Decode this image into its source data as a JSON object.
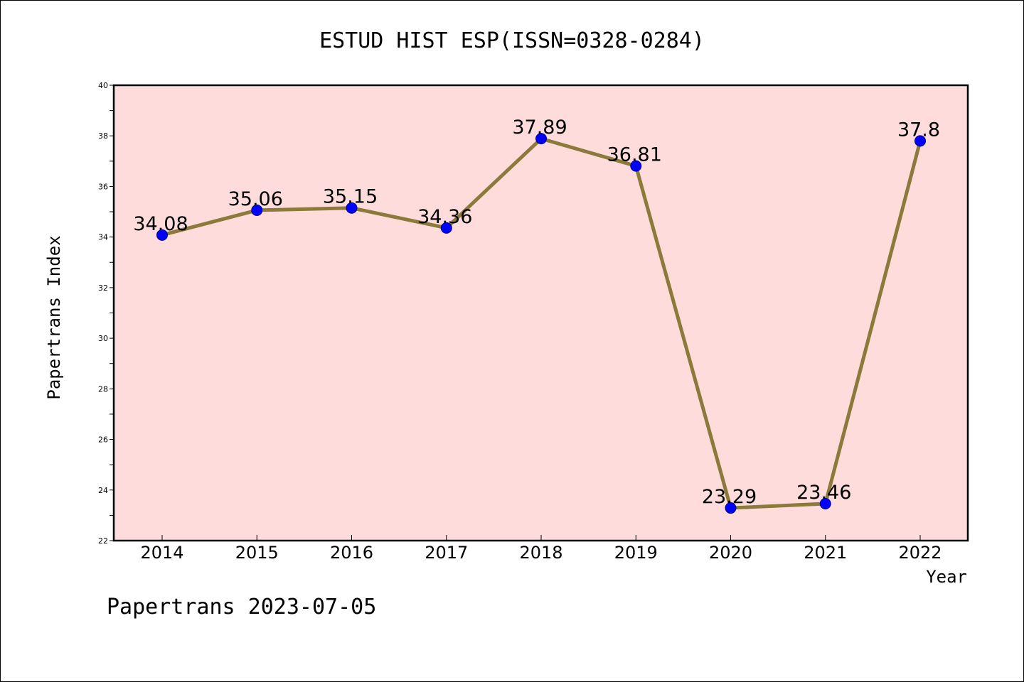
{
  "chart_data": {
    "type": "line",
    "title": "ESTUD HIST ESP(ISSN=0328-0284)",
    "xlabel": "Year",
    "ylabel": "Papertrans Index",
    "x": [
      "2014",
      "2015",
      "2016",
      "2017",
      "2018",
      "2019",
      "2020",
      "2021",
      "2022"
    ],
    "series": [
      {
        "values": [
          34.08,
          35.06,
          35.15,
          34.36,
          37.89,
          36.81,
          23.29,
          23.46,
          37.8
        ],
        "labels": [
          "34.08",
          "35.06",
          "35.15",
          "34.36",
          "37.89",
          "36.81",
          "23.29",
          "23.46",
          "37.8"
        ]
      }
    ],
    "ylim": [
      22,
      40
    ],
    "yticks": [
      "22",
      "24",
      "26",
      "28",
      "30",
      "32",
      "34",
      "36",
      "38",
      "40"
    ],
    "grid": false,
    "colors": {
      "plot_background": "#ffdcdc",
      "line": "#8b7a3a",
      "marker": "#0000ff"
    }
  },
  "footer": {
    "text": "Papertrans 2023-07-05"
  }
}
